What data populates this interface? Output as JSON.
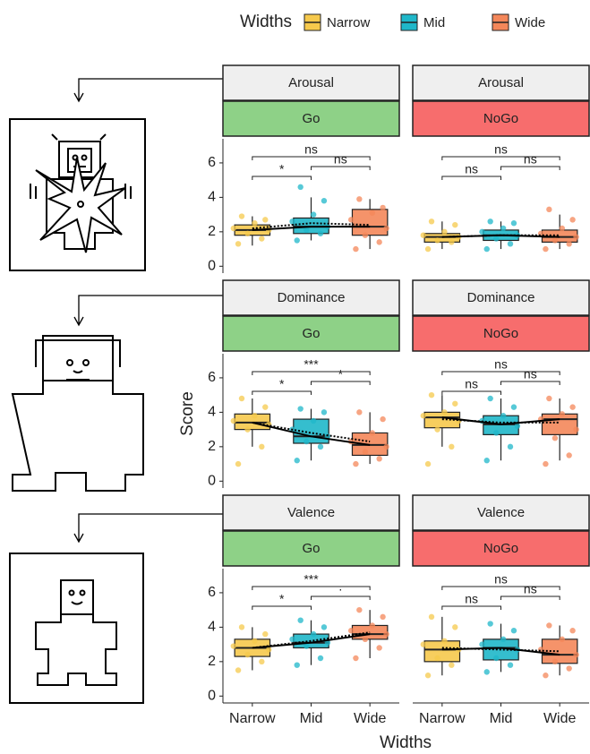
{
  "chart_data": {
    "type": "boxplot",
    "legend": {
      "title": "Widths",
      "position": "top",
      "entries": [
        {
          "name": "Narrow",
          "color": "#F6C94C"
        },
        {
          "name": "Mid",
          "color": "#1FB7C9"
        },
        {
          "name": "Wide",
          "color": "#F4875A"
        }
      ]
    },
    "categories": [
      "Narrow",
      "Mid",
      "Wide"
    ],
    "x_label": "Widths",
    "y_label": "Score",
    "ylim": [
      -0.4,
      7.4
    ],
    "yticks": [
      0,
      2,
      4,
      6
    ],
    "panels": [
      {
        "row_label": "Arousal",
        "col_label": "Go",
        "strip_color": "#8ED187",
        "boxes": [
          {
            "whislo": 1.2,
            "q1": 1.8,
            "median": 2.1,
            "q3": 2.4,
            "whishi": 2.9,
            "mean": 2.2,
            "points": [
              1.3,
              1.6,
              1.9,
              2.1,
              2.2,
              2.5,
              2.7,
              2.9
            ]
          },
          {
            "whislo": 1.5,
            "q1": 1.9,
            "median": 2.3,
            "q3": 2.8,
            "whishi": 4.0,
            "mean": 2.5,
            "points": [
              1.5,
              1.9,
              2.1,
              2.3,
              2.6,
              3.0,
              3.8,
              4.6
            ]
          },
          {
            "whislo": 1.0,
            "q1": 1.8,
            "median": 2.3,
            "q3": 3.3,
            "whishi": 3.9,
            "mean": 2.4,
            "points": [
              1.0,
              1.4,
              1.8,
              2.2,
              2.7,
              3.1,
              3.4,
              3.9
            ]
          }
        ],
        "comparisons": [
          {
            "pair": [
              0,
              1
            ],
            "label": "*"
          },
          {
            "pair": [
              1,
              2
            ],
            "label": "ns"
          },
          {
            "pair": [
              0,
              2
            ],
            "label": "ns"
          }
        ]
      },
      {
        "row_label": "Arousal",
        "col_label": "NoGo",
        "strip_color": "#F76D6D",
        "boxes": [
          {
            "whislo": 1.0,
            "q1": 1.4,
            "median": 1.7,
            "q3": 1.9,
            "whishi": 2.6,
            "mean": 1.7,
            "points": [
              1.0,
              1.4,
              1.5,
              1.7,
              1.8,
              2.0,
              2.4,
              2.6
            ]
          },
          {
            "whislo": 1.0,
            "q1": 1.5,
            "median": 1.8,
            "q3": 2.1,
            "whishi": 2.6,
            "mean": 1.8,
            "points": [
              1.0,
              1.3,
              1.6,
              1.8,
              2.0,
              2.2,
              2.5,
              2.6
            ]
          },
          {
            "whislo": 1.0,
            "q1": 1.4,
            "median": 1.7,
            "q3": 2.1,
            "whishi": 3.0,
            "mean": 1.8,
            "points": [
              1.0,
              1.3,
              1.5,
              1.7,
              1.9,
              2.2,
              2.7,
              3.3
            ]
          }
        ],
        "comparisons": [
          {
            "pair": [
              0,
              1
            ],
            "label": "ns"
          },
          {
            "pair": [
              1,
              2
            ],
            "label": "ns"
          },
          {
            "pair": [
              0,
              2
            ],
            "label": "ns"
          }
        ]
      },
      {
        "row_label": "Dominance",
        "col_label": "Go",
        "strip_color": "#8ED187",
        "boxes": [
          {
            "whislo": 2.0,
            "q1": 3.0,
            "median": 3.4,
            "q3": 3.9,
            "whishi": 4.8,
            "mean": 3.4,
            "points": [
              1.0,
              2.0,
              3.0,
              3.3,
              3.5,
              3.8,
              4.3,
              4.8
            ]
          },
          {
            "whislo": 1.2,
            "q1": 2.2,
            "median": 2.6,
            "q3": 3.6,
            "whishi": 4.2,
            "mean": 2.8,
            "points": [
              1.2,
              2.0,
              2.3,
              2.6,
              3.0,
              3.5,
              4.0,
              4.2
            ]
          },
          {
            "whislo": 1.0,
            "q1": 1.5,
            "median": 2.1,
            "q3": 2.8,
            "whishi": 4.0,
            "mean": 2.3,
            "points": [
              1.0,
              1.3,
              1.7,
              2.0,
              2.3,
              2.8,
              3.6,
              4.0
            ]
          }
        ],
        "comparisons": [
          {
            "pair": [
              0,
              1
            ],
            "label": "*"
          },
          {
            "pair": [
              1,
              2
            ],
            "label": "*"
          },
          {
            "pair": [
              0,
              2
            ],
            "label": "***"
          }
        ]
      },
      {
        "row_label": "Dominance",
        "col_label": "NoGo",
        "strip_color": "#F76D6D",
        "boxes": [
          {
            "whislo": 2.0,
            "q1": 3.1,
            "median": 3.7,
            "q3": 4.0,
            "whishi": 5.0,
            "mean": 3.6,
            "points": [
              1.0,
              2.0,
              3.0,
              3.5,
              3.8,
              4.0,
              4.5,
              5.0
            ]
          },
          {
            "whislo": 1.2,
            "q1": 2.7,
            "median": 3.3,
            "q3": 3.8,
            "whishi": 4.8,
            "mean": 3.4,
            "points": [
              1.2,
              2.0,
              2.8,
              3.2,
              3.5,
              3.8,
              4.3,
              4.8
            ]
          },
          {
            "whislo": 1.2,
            "q1": 2.7,
            "median": 3.6,
            "q3": 3.9,
            "whishi": 4.8,
            "mean": 3.4,
            "points": [
              1.0,
              1.5,
              2.5,
              3.0,
              3.6,
              3.9,
              4.3,
              4.8
            ]
          }
        ],
        "comparisons": [
          {
            "pair": [
              0,
              1
            ],
            "label": "ns"
          },
          {
            "pair": [
              1,
              2
            ],
            "label": "ns"
          },
          {
            "pair": [
              0,
              2
            ],
            "label": "ns"
          }
        ]
      },
      {
        "row_label": "Valence",
        "col_label": "Go",
        "strip_color": "#8ED187",
        "boxes": [
          {
            "whislo": 1.5,
            "q1": 2.3,
            "median": 2.8,
            "q3": 3.3,
            "whishi": 4.0,
            "mean": 2.8,
            "points": [
              1.5,
              2.0,
              2.4,
              2.7,
              2.9,
              3.2,
              3.6,
              4.0
            ]
          },
          {
            "whislo": 1.8,
            "q1": 2.8,
            "median": 3.1,
            "q3": 3.6,
            "whishi": 4.4,
            "mean": 3.2,
            "points": [
              1.8,
              2.2,
              2.9,
              3.1,
              3.3,
              3.6,
              4.0,
              4.4
            ]
          },
          {
            "whislo": 2.2,
            "q1": 3.3,
            "median": 3.6,
            "q3": 4.1,
            "whishi": 5.0,
            "mean": 3.7,
            "points": [
              2.2,
              2.8,
              3.3,
              3.6,
              3.8,
              4.1,
              4.6,
              5.0
            ]
          }
        ],
        "comparisons": [
          {
            "pair": [
              0,
              1
            ],
            "label": "*"
          },
          {
            "pair": [
              1,
              2
            ],
            "label": "·"
          },
          {
            "pair": [
              0,
              2
            ],
            "label": "***"
          }
        ]
      },
      {
        "row_label": "Valence",
        "col_label": "NoGo",
        "strip_color": "#F76D6D",
        "boxes": [
          {
            "whislo": 1.2,
            "q1": 2.0,
            "median": 2.7,
            "q3": 3.2,
            "whishi": 4.6,
            "mean": 2.8,
            "points": [
              1.2,
              1.8,
              2.2,
              2.7,
              3.0,
              3.2,
              4.0,
              4.6
            ]
          },
          {
            "whislo": 1.4,
            "q1": 2.1,
            "median": 2.8,
            "q3": 3.3,
            "whishi": 4.2,
            "mean": 2.7,
            "points": [
              1.4,
              1.8,
              2.2,
              2.7,
              3.0,
              3.3,
              3.8,
              4.2
            ]
          },
          {
            "whislo": 1.2,
            "q1": 1.9,
            "median": 2.4,
            "q3": 3.3,
            "whishi": 4.1,
            "mean": 2.6,
            "points": [
              1.2,
              1.6,
              2.0,
              2.4,
              2.7,
              3.3,
              3.8,
              4.1
            ]
          }
        ],
        "comparisons": [
          {
            "pair": [
              0,
              1
            ],
            "label": "ns"
          },
          {
            "pair": [
              1,
              2
            ],
            "label": "ns"
          },
          {
            "pair": [
              0,
              2
            ],
            "label": "ns"
          }
        ]
      }
    ]
  }
}
